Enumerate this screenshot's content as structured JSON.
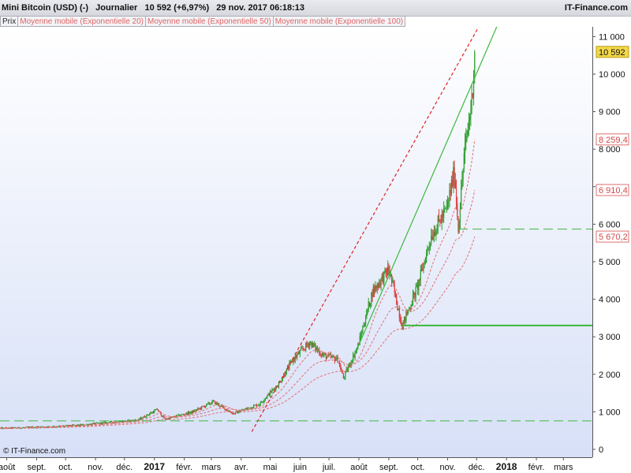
{
  "header": {
    "title": "Mini Bitcoin (USD) (-)   Journalier   10 592 (+6,97%)   29 nov. 2017 06:18:13",
    "brand": "IT-Finance.com"
  },
  "legend": [
    {
      "label": "Prix"
    },
    {
      "label": "Moyenne mobile (Exponentielle 20)"
    },
    {
      "label": "Moyenne mobile (Exponentielle 50)"
    },
    {
      "label": "Moyenne mobile (Exponentielle 100)"
    }
  ],
  "footer": {
    "brand": "© IT-Finance.com"
  },
  "colors": {
    "up": "#2e9e2e",
    "down": "#d84040",
    "ma": "#e07070",
    "trend_green": "#3cb83c",
    "trend_red": "#e02020",
    "hline": "#3cb83c",
    "background_top": "#ffffff",
    "background_bottom": "#d7e0f7"
  },
  "chart_data": {
    "type": "candlestick",
    "x_range": [
      "2016-07-25",
      "2018-03-31"
    ],
    "y_range": [
      0,
      11500
    ],
    "y_ticks": [
      {
        "value": 0,
        "label": "0"
      },
      {
        "value": 1000,
        "label": "1 000"
      },
      {
        "value": 2000,
        "label": "2 000"
      },
      {
        "value": 3000,
        "label": "3 000"
      },
      {
        "value": 4000,
        "label": "4 000"
      },
      {
        "value": 5000,
        "label": "5 000"
      },
      {
        "value": 6000,
        "label": "6 000"
      },
      {
        "value": 7000,
        "label": "7 000"
      },
      {
        "value": 8000,
        "label": "8 000"
      },
      {
        "value": 9000,
        "label": "9 000"
      },
      {
        "value": 10000,
        "label": "10 000"
      },
      {
        "value": 11000,
        "label": "11 000"
      }
    ],
    "x_ticks": [
      {
        "date": "2016-08-01",
        "label": "août"
      },
      {
        "date": "2016-09-01",
        "label": "sept."
      },
      {
        "date": "2016-10-01",
        "label": "oct."
      },
      {
        "date": "2016-11-01",
        "label": "nov."
      },
      {
        "date": "2016-12-01",
        "label": "déc."
      },
      {
        "date": "2017-01-01",
        "label": "2017",
        "year": true
      },
      {
        "date": "2017-02-01",
        "label": "févr."
      },
      {
        "date": "2017-03-01",
        "label": "mars"
      },
      {
        "date": "2017-04-01",
        "label": "avr."
      },
      {
        "date": "2017-05-01",
        "label": "mai"
      },
      {
        "date": "2017-06-01",
        "label": "juin"
      },
      {
        "date": "2017-07-01",
        "label": "juil."
      },
      {
        "date": "2017-08-01",
        "label": "août"
      },
      {
        "date": "2017-09-01",
        "label": "sept."
      },
      {
        "date": "2017-10-01",
        "label": "oct."
      },
      {
        "date": "2017-11-01",
        "label": "nov."
      },
      {
        "date": "2017-12-01",
        "label": "déc."
      },
      {
        "date": "2018-01-01",
        "label": "2018",
        "year": true
      },
      {
        "date": "2018-02-01",
        "label": "févr."
      },
      {
        "date": "2018-03-01",
        "label": "mars"
      }
    ],
    "price_path": [
      [
        "2016-07-25",
        560
      ],
      [
        "2016-08-15",
        575
      ],
      [
        "2016-09-15",
        605
      ],
      [
        "2016-10-15",
        640
      ],
      [
        "2016-11-15",
        720
      ],
      [
        "2016-12-15",
        780
      ],
      [
        "2017-01-04",
        1060
      ],
      [
        "2017-01-12",
        800
      ],
      [
        "2017-02-10",
        1000
      ],
      [
        "2017-03-03",
        1270
      ],
      [
        "2017-03-24",
        950
      ],
      [
        "2017-04-20",
        1210
      ],
      [
        "2017-05-10",
        1750
      ],
      [
        "2017-05-25",
        2400
      ],
      [
        "2017-06-11",
        2850
      ],
      [
        "2017-06-25",
        2500
      ],
      [
        "2017-07-10",
        2400
      ],
      [
        "2017-07-16",
        1900
      ],
      [
        "2017-07-31",
        2750
      ],
      [
        "2017-08-15",
        4200
      ],
      [
        "2017-09-01",
        4800
      ],
      [
        "2017-09-15",
        3300
      ],
      [
        "2017-10-01",
        4350
      ],
      [
        "2017-10-15",
        5700
      ],
      [
        "2017-10-31",
        6400
      ],
      [
        "2017-11-08",
        7400
      ],
      [
        "2017-11-12",
        5900
      ],
      [
        "2017-11-18",
        7800
      ],
      [
        "2017-11-26",
        9300
      ],
      [
        "2017-11-29",
        10592
      ]
    ],
    "moving_averages": [
      {
        "name": "Moyenne mobile (Exponentielle 20)",
        "end_value": 8259.4
      },
      {
        "name": "Moyenne mobile (Exponentielle 50)",
        "end_value": 6910.4
      },
      {
        "name": "Moyenne mobile (Exponentielle 100)",
        "end_value": 5670.2
      }
    ],
    "last_price": 10592,
    "price_tags": [
      {
        "label": "10 592",
        "value": 10592,
        "kind": "last"
      },
      {
        "label": "8 259,4",
        "value": 8259.4,
        "kind": "ma"
      },
      {
        "label": "6 910,4",
        "value": 6910.4,
        "kind": "ma"
      },
      {
        "label": "5 670,2",
        "value": 5670.2,
        "kind": "ma"
      }
    ],
    "trendlines": [
      {
        "style": "solid",
        "color": "green",
        "from": [
          "2017-07-23",
          2250
        ],
        "to": [
          "2017-12-31",
          11800
        ]
      },
      {
        "style": "dashed",
        "color": "red",
        "from": [
          "2017-04-12",
          470
        ],
        "to": [
          "2017-12-03",
          11250
        ]
      }
    ],
    "horizontal_lines": [
      {
        "style": "dashed",
        "value": 760,
        "from": "2016-07-25"
      },
      {
        "style": "solid",
        "value": 3300,
        "from": "2017-09-15"
      },
      {
        "style": "dashed",
        "value": 5870,
        "from": "2017-11-12"
      }
    ]
  }
}
